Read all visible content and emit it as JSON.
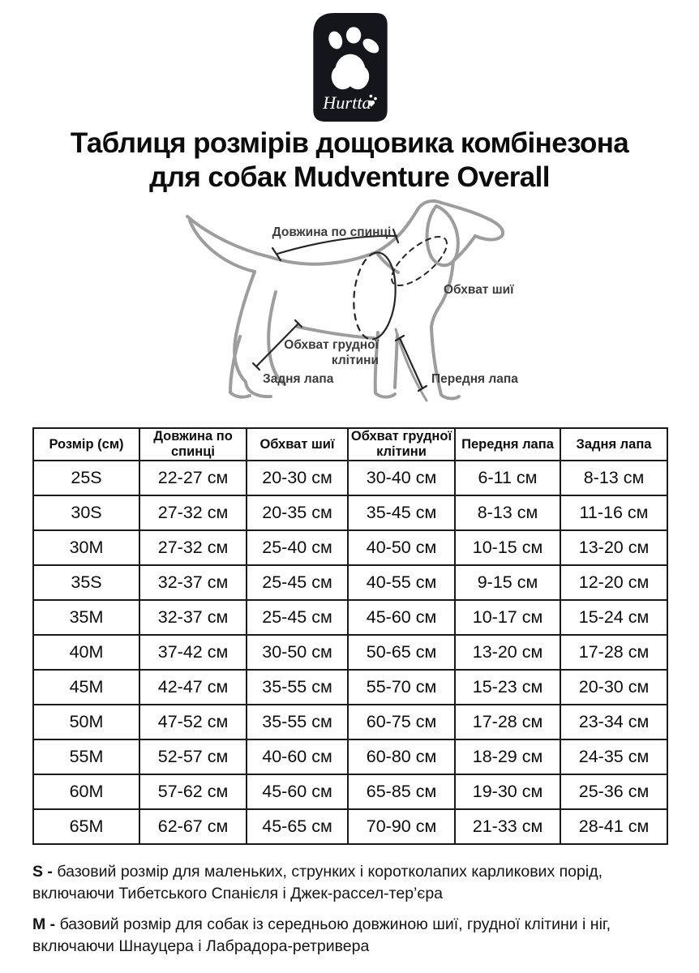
{
  "logo": {
    "brand": "Hurtta",
    "bg_color": "#15151c"
  },
  "title": {
    "line1": "Таблиця розмірів дощовика комбінезона",
    "line2": "для собак Mudventure Overall"
  },
  "diagram": {
    "labels": {
      "back_length": "Довжина по спинці",
      "neck_girth": "Обхват шиї",
      "chest_girth_line1": "Обхват грудної",
      "chest_girth_line2": "клітини",
      "hind_leg": "Задня лапа",
      "front_leg": "Передня лапа"
    },
    "outline_color": "#9d9d9d",
    "annotation_color": "#262626"
  },
  "chart_data": {
    "type": "table",
    "title": "Таблиця розмірів дощовика комбінезона для собак Mudventure Overall",
    "columns": [
      "Розмір (см)",
      "Довжина по спинці",
      "Обхват шиї",
      "Обхват грудної клітини",
      "Передня лапа",
      "Задня лапа"
    ],
    "rows": [
      [
        "25S",
        "22-27 см",
        "20-30 см",
        "30-40 см",
        "6-11 см",
        "8-13 см"
      ],
      [
        "30S",
        "27-32 см",
        "20-35 см",
        "35-45 см",
        "8-13 см",
        "11-16 см"
      ],
      [
        "30M",
        "27-32 см",
        "25-40 см",
        "40-50 см",
        "10-15 см",
        "13-20 см"
      ],
      [
        "35S",
        "32-37 см",
        "25-45 см",
        "40-55 см",
        "9-15 см",
        "12-20 см"
      ],
      [
        "35M",
        "32-37 см",
        "25-45 см",
        "45-60 см",
        "10-17 см",
        "15-24 см"
      ],
      [
        "40M",
        "37-42 см",
        "30-50 см",
        "50-65 см",
        "13-20 см",
        "17-28 см"
      ],
      [
        "45M",
        "42-47 см",
        "35-55 см",
        "55-70 см",
        "15-23 см",
        "20-30 см"
      ],
      [
        "50M",
        "47-52 см",
        "35-55 см",
        "60-75 см",
        "17-28 см",
        "23-34 см"
      ],
      [
        "55M",
        "52-57 см",
        "40-60 см",
        "60-80 см",
        "18-29 см",
        "24-35 см"
      ],
      [
        "60M",
        "57-62 см",
        "45-60 см",
        "65-85 см",
        "19-30 см",
        "25-36 см"
      ],
      [
        "65M",
        "62-67 см",
        "45-65 см",
        "70-90 см",
        "21-33 см",
        "28-41 см"
      ]
    ]
  },
  "notes": [
    {
      "prefix": "S -",
      "text": "базовий розмір для маленьких, струнких і коротколапих карликових порід, включаючи Тибетського Спанієля і Джек-рассел-тер’єра"
    },
    {
      "prefix": "M -",
      "text": "базовий розмір для собак із середньою довжиною шиї, грудної клітини і ніг, включаючи Шнауцера і Лабрадора-ретривера"
    }
  ]
}
